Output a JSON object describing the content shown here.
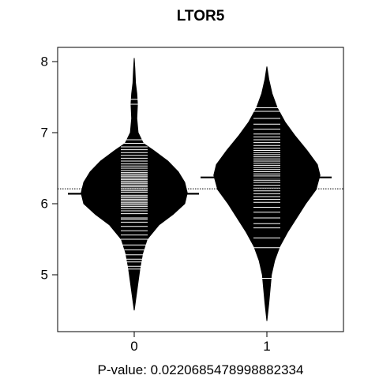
{
  "chart_data": {
    "type": "beanplot",
    "title": "LTOR5",
    "xlabel": "P-value: 0.0220685478998882334",
    "ylabel": "",
    "categories": [
      "0",
      "1"
    ],
    "ylim": [
      4.2,
      8.2
    ],
    "y_ticks": [
      5,
      6,
      7,
      8
    ],
    "overall_mean": 6.21,
    "group_means": [
      6.14,
      6.37
    ],
    "density_profiles": [
      {
        "group": "0",
        "profile": [
          [
            4.5,
            0.0
          ],
          [
            4.7,
            0.03
          ],
          [
            4.9,
            0.06
          ],
          [
            5.1,
            0.09
          ],
          [
            5.3,
            0.13
          ],
          [
            5.5,
            0.2
          ],
          [
            5.7,
            0.38
          ],
          [
            5.85,
            0.6
          ],
          [
            6.0,
            0.78
          ],
          [
            6.15,
            0.82
          ],
          [
            6.3,
            0.78
          ],
          [
            6.45,
            0.68
          ],
          [
            6.6,
            0.52
          ],
          [
            6.75,
            0.3
          ],
          [
            6.85,
            0.14
          ],
          [
            7.0,
            0.06
          ],
          [
            7.2,
            0.04
          ],
          [
            7.4,
            0.05
          ],
          [
            7.55,
            0.04
          ],
          [
            7.7,
            0.02
          ],
          [
            7.9,
            0.01
          ],
          [
            8.05,
            0.0
          ]
        ]
      },
      {
        "group": "1",
        "profile": [
          [
            4.35,
            0.0
          ],
          [
            4.6,
            0.03
          ],
          [
            4.8,
            0.05
          ],
          [
            5.0,
            0.07
          ],
          [
            5.2,
            0.12
          ],
          [
            5.4,
            0.2
          ],
          [
            5.6,
            0.32
          ],
          [
            5.8,
            0.46
          ],
          [
            6.0,
            0.6
          ],
          [
            6.2,
            0.76
          ],
          [
            6.4,
            0.82
          ],
          [
            6.55,
            0.78
          ],
          [
            6.75,
            0.62
          ],
          [
            6.95,
            0.44
          ],
          [
            7.15,
            0.28
          ],
          [
            7.35,
            0.16
          ],
          [
            7.55,
            0.08
          ],
          [
            7.75,
            0.03
          ],
          [
            7.93,
            0.0
          ]
        ]
      }
    ],
    "observations": [
      {
        "group": "0",
        "values": [
          5.08,
          5.12,
          5.18,
          5.22,
          5.28,
          5.35,
          5.42,
          5.5,
          5.56,
          5.62,
          5.68,
          5.74,
          5.78,
          5.8,
          5.86,
          5.9,
          5.93,
          5.96,
          5.98,
          6.0,
          6.02,
          6.04,
          6.06,
          6.08,
          6.1,
          6.12,
          6.14,
          6.16,
          6.18,
          6.2,
          6.22,
          6.24,
          6.26,
          6.28,
          6.3,
          6.32,
          6.34,
          6.36,
          6.38,
          6.4,
          6.42,
          6.44,
          6.47,
          6.5,
          6.53,
          6.56,
          6.6,
          6.64,
          6.68,
          6.72,
          6.76,
          6.8,
          6.85,
          6.9,
          7.4,
          7.47
        ]
      },
      {
        "group": "1",
        "values": [
          4.95,
          5.38,
          5.52,
          5.66,
          5.72,
          5.8,
          5.88,
          5.95,
          6.02,
          6.06,
          6.1,
          6.14,
          6.18,
          6.22,
          6.26,
          6.3,
          6.33,
          6.36,
          6.39,
          6.42,
          6.45,
          6.48,
          6.51,
          6.54,
          6.57,
          6.6,
          6.63,
          6.66,
          6.69,
          6.72,
          6.75,
          6.78,
          6.82,
          6.86,
          6.9,
          6.94,
          6.98,
          7.05,
          7.12,
          7.2,
          7.3,
          7.35
        ]
      }
    ]
  }
}
